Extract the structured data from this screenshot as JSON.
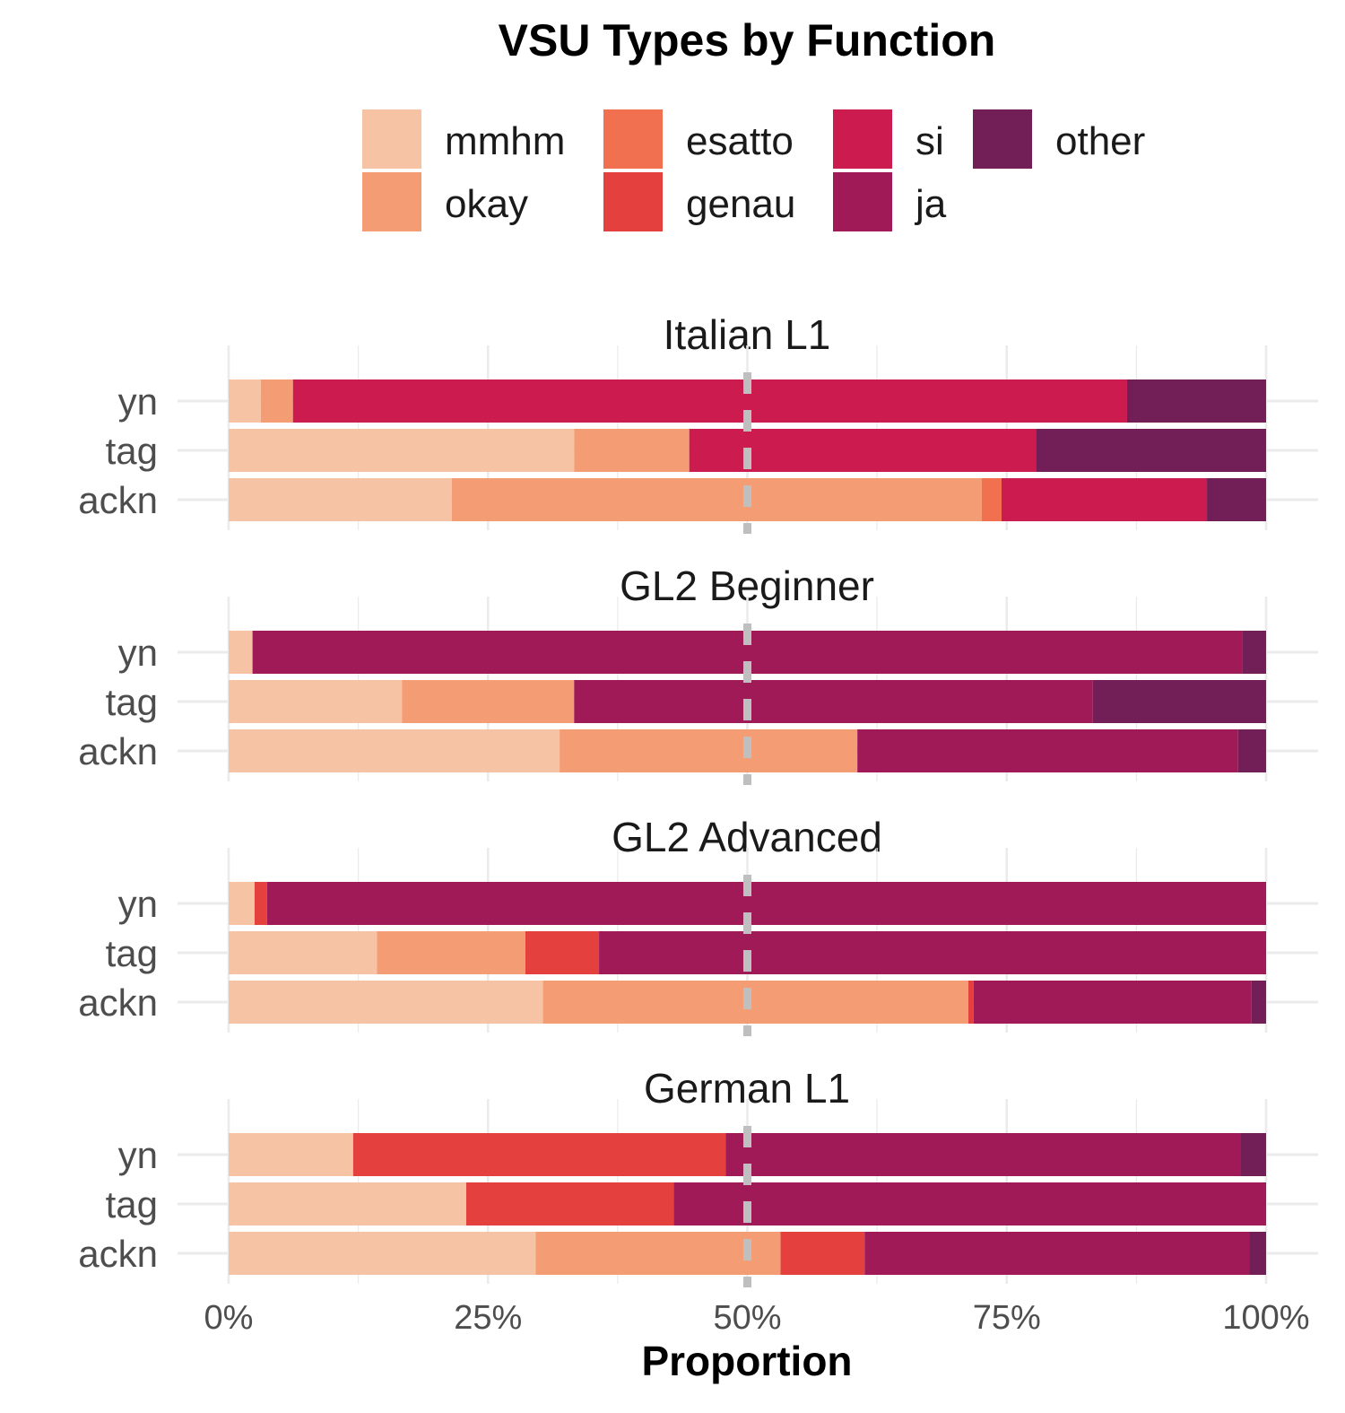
{
  "chart_data": {
    "type": "bar",
    "orientation": "horizontal",
    "stacked": true,
    "title": "VSU Types by Function",
    "xlabel": "Proportion",
    "ylabel": "",
    "xlim": [
      0,
      1
    ],
    "x_ticks": [
      "0%",
      "25%",
      "50%",
      "75%",
      "100%"
    ],
    "reference_line": {
      "x": 0.5,
      "style": "dashed",
      "color": "#bfbfbf"
    },
    "grid": true,
    "legend_position": "top",
    "categories": [
      "yn",
      "tag",
      "ackn"
    ],
    "legend": [
      {
        "name": "mmhm",
        "color": "#F6C3A5"
      },
      {
        "name": "okay",
        "color": "#F49D74"
      },
      {
        "name": "esatto",
        "color": "#F07050"
      },
      {
        "name": "genau",
        "color": "#E4403E"
      },
      {
        "name": "si",
        "color": "#CB1B4F"
      },
      {
        "name": "ja",
        "color": "#A01A58"
      },
      {
        "name": "other",
        "color": "#721F57"
      }
    ],
    "panels": [
      {
        "name": "Italian L1",
        "rows": [
          {
            "category": "yn",
            "values": {
              "mmhm": 0.031,
              "okay": 0.031,
              "esatto": 0,
              "genau": 0,
              "si": 0.804,
              "ja": 0,
              "other": 0.134
            }
          },
          {
            "category": "tag",
            "values": {
              "mmhm": 0.333,
              "okay": 0.111,
              "esatto": 0,
              "genau": 0,
              "si": 0.334,
              "ja": 0,
              "other": 0.222
            }
          },
          {
            "category": "ackn",
            "values": {
              "mmhm": 0.215,
              "okay": 0.511,
              "esatto": 0.019,
              "genau": 0,
              "si": 0.198,
              "ja": 0,
              "other": 0.057
            }
          }
        ]
      },
      {
        "name": "GL2 Beginner",
        "rows": [
          {
            "category": "yn",
            "values": {
              "mmhm": 0.023,
              "okay": 0,
              "esatto": 0,
              "genau": 0,
              "si": 0,
              "ja": 0.954,
              "other": 0.023
            }
          },
          {
            "category": "tag",
            "values": {
              "mmhm": 0.167,
              "okay": 0.166,
              "esatto": 0,
              "genau": 0,
              "si": 0,
              "ja": 0.5,
              "other": 0.167
            }
          },
          {
            "category": "ackn",
            "values": {
              "mmhm": 0.319,
              "okay": 0.287,
              "esatto": 0,
              "genau": 0,
              "si": 0,
              "ja": 0.367,
              "other": 0.027
            }
          }
        ]
      },
      {
        "name": "GL2 Advanced",
        "rows": [
          {
            "category": "yn",
            "values": {
              "mmhm": 0.025,
              "okay": 0,
              "esatto": 0,
              "genau": 0.012,
              "si": 0,
              "ja": 0.963,
              "other": 0
            }
          },
          {
            "category": "tag",
            "values": {
              "mmhm": 0.143,
              "okay": 0.143,
              "esatto": 0,
              "genau": 0.071,
              "si": 0,
              "ja": 0.643,
              "other": 0
            }
          },
          {
            "category": "ackn",
            "values": {
              "mmhm": 0.303,
              "okay": 0.41,
              "esatto": 0,
              "genau": 0.005,
              "si": 0,
              "ja": 0.268,
              "other": 0.014
            }
          }
        ]
      },
      {
        "name": "German L1",
        "rows": [
          {
            "category": "yn",
            "values": {
              "mmhm": 0.12,
              "okay": 0,
              "esatto": 0,
              "genau": 0.359,
              "si": 0,
              "ja": 0.496,
              "other": 0.025
            }
          },
          {
            "category": "tag",
            "values": {
              "mmhm": 0.229,
              "okay": 0,
              "esatto": 0,
              "genau": 0.2,
              "si": 0,
              "ja": 0.571,
              "other": 0
            }
          },
          {
            "category": "ackn",
            "values": {
              "mmhm": 0.296,
              "okay": 0.236,
              "esatto": 0,
              "genau": 0.081,
              "si": 0,
              "ja": 0.371,
              "other": 0.016
            }
          }
        ]
      }
    ]
  }
}
